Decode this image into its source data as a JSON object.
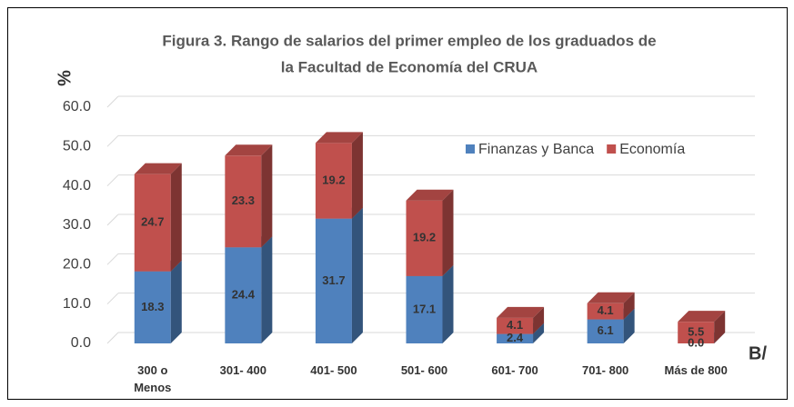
{
  "chart_data": {
    "type": "bar3d_stacked",
    "title": [
      "Figura 3.  Rango de salarios del primer empleo de los graduados de",
      "la Facultad de Economía del CRUA"
    ],
    "y_label": "%",
    "x_label": "B/",
    "categories": [
      "300 o Menos",
      "301- 400",
      "401- 500",
      "501- 600",
      "601- 700",
      "701- 800",
      "Más de 800"
    ],
    "series": [
      {
        "name": "Finanzas y Banca",
        "color": "#4f81bd",
        "values": [
          18.3,
          24.4,
          31.7,
          17.1,
          2.4,
          6.1,
          0.0
        ],
        "value_labels": [
          "18.3",
          "24.4",
          "31.7",
          "17.1",
          "2.4",
          "6.1",
          "0.0"
        ]
      },
      {
        "name": "Economía",
        "color": "#c0504d",
        "values": [
          24.7,
          23.3,
          19.2,
          19.2,
          4.1,
          4.1,
          5.5
        ],
        "value_labels": [
          "24.7",
          "23.3",
          "19.2",
          "19.2",
          "4.1",
          "4.1",
          "5.5"
        ]
      }
    ],
    "ylim": [
      0,
      60
    ],
    "yticks": [
      {
        "value": 0,
        "label": "0.0"
      },
      {
        "value": 10,
        "label": "10.0"
      },
      {
        "value": 20,
        "label": "20.0"
      },
      {
        "value": 30,
        "label": "30.0"
      },
      {
        "value": 40,
        "label": "40.0"
      },
      {
        "value": 50,
        "label": "50.0"
      },
      {
        "value": 60,
        "label": "60.0"
      }
    ],
    "grid": true,
    "legend": "upper right"
  }
}
